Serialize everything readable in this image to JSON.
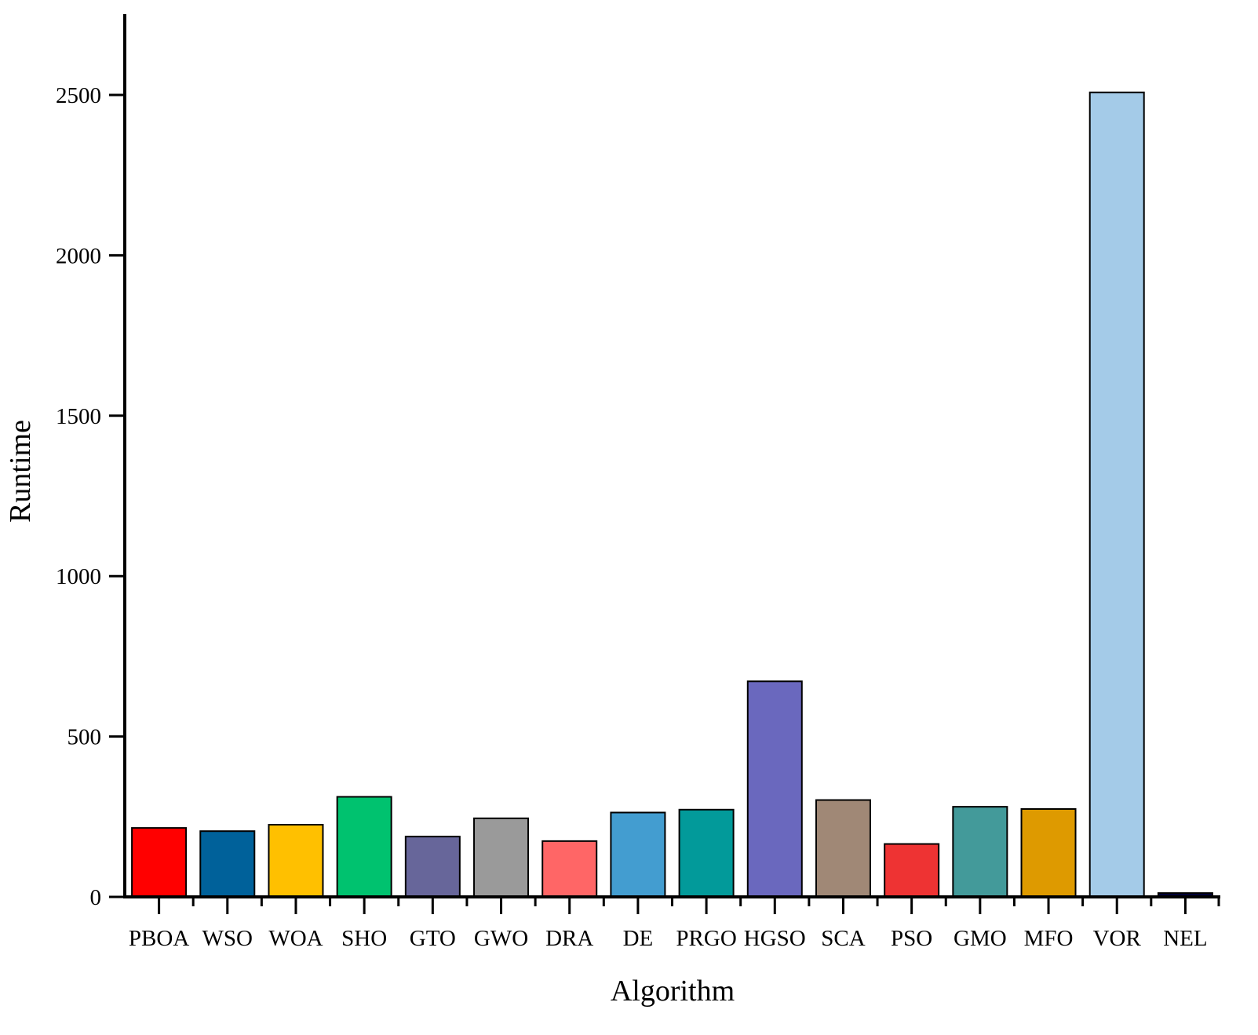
{
  "chart_data": {
    "type": "bar",
    "xlabel": "Algorithm",
    "ylabel": "Runtime",
    "ylim": [
      0,
      2750
    ],
    "yticks": [
      0,
      500,
      1000,
      1500,
      2000,
      2500
    ],
    "grid": false,
    "categories": [
      "PBOA",
      "WSO",
      "WOA",
      "SHO",
      "GTO",
      "GWO",
      "DRA",
      "DE",
      "PRGO",
      "HGSO",
      "SCA",
      "PSO",
      "GMO",
      "MFO",
      "VOR",
      "NEL"
    ],
    "values": [
      215,
      205,
      225,
      312,
      188,
      245,
      174,
      263,
      272,
      672,
      302,
      165,
      281,
      274,
      2508,
      12
    ],
    "colors": [
      "#ff0000",
      "#00619a",
      "#ffc000",
      "#00c26f",
      "#67669a",
      "#9a9a9a",
      "#ff6666",
      "#439dd0",
      "#029a9a",
      "#6a68be",
      "#a08876",
      "#ee3333",
      "#439a9a",
      "#de9a00",
      "#a4cbe8",
      "#00003a"
    ]
  }
}
